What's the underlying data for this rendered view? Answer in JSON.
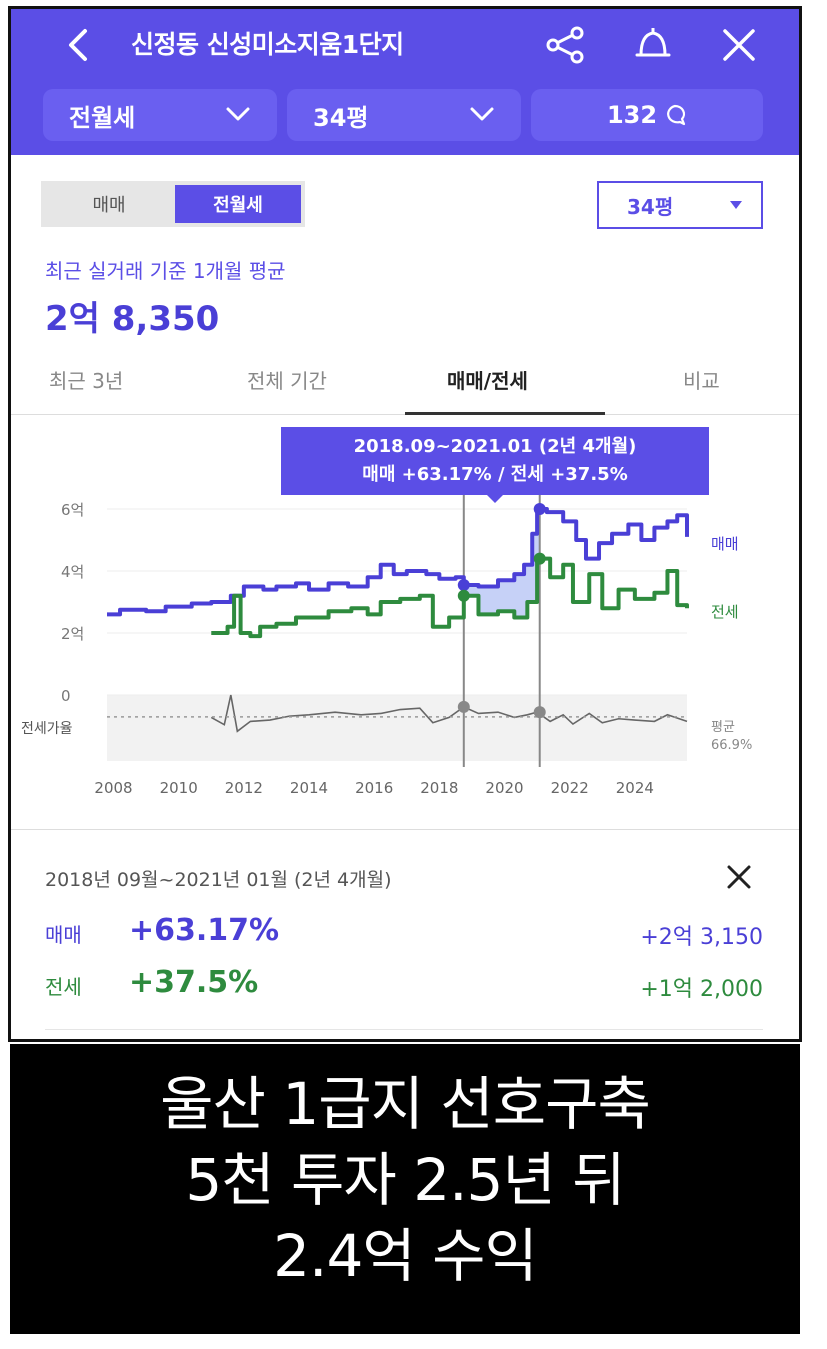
{
  "header": {
    "title": "신정동 신성미소지움1단지",
    "icons": [
      "back-icon",
      "share-icon",
      "bell-icon",
      "close-icon"
    ],
    "selectors": [
      {
        "label": "전월세"
      },
      {
        "label": "34평"
      },
      {
        "label": "132"
      }
    ]
  },
  "toggle": {
    "options": [
      "매매",
      "전월세"
    ],
    "selected": "전월세"
  },
  "pyeong_dropdown": {
    "label": "34평"
  },
  "summary": {
    "subtitle": "최근 실거래 기준 1개월 평균",
    "price": "2억 8,350"
  },
  "period_tabs": {
    "items": [
      "최근 3년",
      "전체 기간",
      "매매/전세",
      "비교"
    ],
    "active": "매매/전세"
  },
  "tooltip": {
    "line1": "2018.09~2021.01 (2년 4개월)",
    "line2": "매매 +63.17%  /  전세 +37.5%"
  },
  "chart_data": {
    "type": "line",
    "y_ticks": [
      "6억",
      "4억",
      "2억",
      "0"
    ],
    "x_ticks": [
      "2008",
      "2010",
      "2012",
      "2014",
      "2016",
      "2018",
      "2020",
      "2022",
      "2024"
    ],
    "ylim": [
      0,
      6.5
    ],
    "xlim": [
      2007.8,
      2025.6
    ],
    "series": [
      {
        "name": "매매",
        "color": "#4a3fd6",
        "points": [
          [
            2007.8,
            2.6
          ],
          [
            2008.2,
            2.75
          ],
          [
            2009.0,
            2.7
          ],
          [
            2009.6,
            2.85
          ],
          [
            2010.4,
            2.95
          ],
          [
            2011.0,
            3.0
          ],
          [
            2011.6,
            3.2
          ],
          [
            2012.0,
            3.5
          ],
          [
            2012.6,
            3.4
          ],
          [
            2013.0,
            3.5
          ],
          [
            2013.6,
            3.6
          ],
          [
            2014.0,
            3.4
          ],
          [
            2014.6,
            3.6
          ],
          [
            2015.2,
            3.5
          ],
          [
            2015.8,
            3.8
          ],
          [
            2016.2,
            4.2
          ],
          [
            2016.6,
            3.9
          ],
          [
            2017.0,
            4.0
          ],
          [
            2017.6,
            3.9
          ],
          [
            2018.0,
            3.75
          ],
          [
            2018.5,
            3.8
          ],
          [
            2018.75,
            3.55
          ],
          [
            2019.2,
            3.5
          ],
          [
            2019.8,
            3.7
          ],
          [
            2020.3,
            3.9
          ],
          [
            2020.6,
            4.2
          ],
          [
            2020.85,
            5.2
          ],
          [
            2021.0,
            6.0
          ],
          [
            2021.3,
            5.9
          ],
          [
            2021.8,
            5.6
          ],
          [
            2022.2,
            5.0
          ],
          [
            2022.5,
            4.4
          ],
          [
            2022.9,
            4.9
          ],
          [
            2023.3,
            5.2
          ],
          [
            2023.8,
            5.5
          ],
          [
            2024.2,
            5.0
          ],
          [
            2024.6,
            5.4
          ],
          [
            2025.0,
            5.6
          ],
          [
            2025.3,
            5.8
          ],
          [
            2025.6,
            5.1
          ]
        ]
      },
      {
        "name": "전세",
        "color": "#2e8b3e",
        "points": [
          [
            2011.0,
            2.0
          ],
          [
            2011.5,
            2.2
          ],
          [
            2011.7,
            3.2
          ],
          [
            2011.9,
            2.0
          ],
          [
            2012.2,
            1.9
          ],
          [
            2012.5,
            2.2
          ],
          [
            2013.0,
            2.3
          ],
          [
            2013.6,
            2.5
          ],
          [
            2014.0,
            2.5
          ],
          [
            2014.6,
            2.7
          ],
          [
            2015.3,
            2.8
          ],
          [
            2015.8,
            2.6
          ],
          [
            2016.2,
            3.0
          ],
          [
            2016.8,
            3.1
          ],
          [
            2017.4,
            3.2
          ],
          [
            2017.8,
            2.2
          ],
          [
            2018.3,
            2.5
          ],
          [
            2018.75,
            3.2
          ],
          [
            2019.2,
            2.6
          ],
          [
            2019.8,
            2.7
          ],
          [
            2020.3,
            2.5
          ],
          [
            2020.7,
            3.0
          ],
          [
            2021.0,
            4.4
          ],
          [
            2021.4,
            3.8
          ],
          [
            2021.8,
            4.2
          ],
          [
            2022.1,
            3.0
          ],
          [
            2022.6,
            3.9
          ],
          [
            2023.0,
            2.8
          ],
          [
            2023.5,
            3.4
          ],
          [
            2024.0,
            3.1
          ],
          [
            2024.6,
            3.3
          ],
          [
            2025.0,
            4.0
          ],
          [
            2025.3,
            2.9
          ],
          [
            2025.6,
            2.8
          ]
        ]
      }
    ],
    "ratio_label": "전세가율",
    "ratio_avg_label": "평균",
    "ratio_avg_value": "66.9%",
    "ratio_points": [
      [
        2011.0,
        0.66
      ],
      [
        2011.4,
        0.55
      ],
      [
        2011.6,
        1.0
      ],
      [
        2011.8,
        0.45
      ],
      [
        2012.2,
        0.6
      ],
      [
        2012.8,
        0.62
      ],
      [
        2013.4,
        0.68
      ],
      [
        2014.0,
        0.7
      ],
      [
        2014.8,
        0.74
      ],
      [
        2015.6,
        0.7
      ],
      [
        2016.2,
        0.72
      ],
      [
        2016.8,
        0.78
      ],
      [
        2017.4,
        0.8
      ],
      [
        2017.8,
        0.58
      ],
      [
        2018.3,
        0.66
      ],
      [
        2018.75,
        0.82
      ],
      [
        2019.2,
        0.72
      ],
      [
        2019.8,
        0.74
      ],
      [
        2020.3,
        0.66
      ],
      [
        2020.7,
        0.7
      ],
      [
        2021.0,
        0.74
      ],
      [
        2021.4,
        0.6
      ],
      [
        2021.8,
        0.7
      ],
      [
        2022.1,
        0.56
      ],
      [
        2022.6,
        0.72
      ],
      [
        2023.0,
        0.58
      ],
      [
        2023.5,
        0.64
      ],
      [
        2024.0,
        0.62
      ],
      [
        2024.6,
        0.6
      ],
      [
        2025.0,
        0.7
      ],
      [
        2025.6,
        0.6
      ]
    ],
    "selection": {
      "start": 2018.75,
      "end": 2021.08
    }
  },
  "detail": {
    "title": "2018년 09월~2021년 01월 (2년 4개월)",
    "rows": [
      {
        "key": "매매",
        "pct": "+63.17%",
        "diff": "+2억 3,150"
      },
      {
        "key": "전세",
        "pct": "+37.5%",
        "diff": "+1억 2,000"
      }
    ]
  },
  "caption": {
    "lines": [
      "울산 1급지 선호구축",
      "5천 투자 2.5년 뒤",
      "2.4억 수익"
    ]
  }
}
